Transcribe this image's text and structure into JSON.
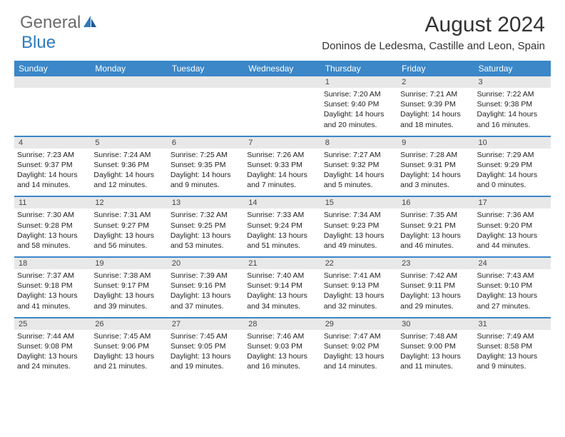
{
  "logo": {
    "text1": "General",
    "text2": "Blue"
  },
  "title": "August 2024",
  "location": "Doninos de Ledesma, Castille and Leon, Spain",
  "colors": {
    "header_bg": "#3b87c8",
    "header_text": "#ffffff",
    "daynum_bg": "#e8e8e8",
    "row_border": "#3b87c8",
    "body_text": "#222222",
    "logo_gray": "#6a6a6a",
    "logo_blue": "#2f7abf"
  },
  "day_headers": [
    "Sunday",
    "Monday",
    "Tuesday",
    "Wednesday",
    "Thursday",
    "Friday",
    "Saturday"
  ],
  "weeks": [
    {
      "nums": [
        "",
        "",
        "",
        "",
        "1",
        "2",
        "3"
      ],
      "cells": [
        null,
        null,
        null,
        null,
        {
          "sr": "Sunrise: 7:20 AM",
          "ss": "Sunset: 9:40 PM",
          "dl1": "Daylight: 14 hours",
          "dl2": "and 20 minutes."
        },
        {
          "sr": "Sunrise: 7:21 AM",
          "ss": "Sunset: 9:39 PM",
          "dl1": "Daylight: 14 hours",
          "dl2": "and 18 minutes."
        },
        {
          "sr": "Sunrise: 7:22 AM",
          "ss": "Sunset: 9:38 PM",
          "dl1": "Daylight: 14 hours",
          "dl2": "and 16 minutes."
        }
      ]
    },
    {
      "nums": [
        "4",
        "5",
        "6",
        "7",
        "8",
        "9",
        "10"
      ],
      "cells": [
        {
          "sr": "Sunrise: 7:23 AM",
          "ss": "Sunset: 9:37 PM",
          "dl1": "Daylight: 14 hours",
          "dl2": "and 14 minutes."
        },
        {
          "sr": "Sunrise: 7:24 AM",
          "ss": "Sunset: 9:36 PM",
          "dl1": "Daylight: 14 hours",
          "dl2": "and 12 minutes."
        },
        {
          "sr": "Sunrise: 7:25 AM",
          "ss": "Sunset: 9:35 PM",
          "dl1": "Daylight: 14 hours",
          "dl2": "and 9 minutes."
        },
        {
          "sr": "Sunrise: 7:26 AM",
          "ss": "Sunset: 9:33 PM",
          "dl1": "Daylight: 14 hours",
          "dl2": "and 7 minutes."
        },
        {
          "sr": "Sunrise: 7:27 AM",
          "ss": "Sunset: 9:32 PM",
          "dl1": "Daylight: 14 hours",
          "dl2": "and 5 minutes."
        },
        {
          "sr": "Sunrise: 7:28 AM",
          "ss": "Sunset: 9:31 PM",
          "dl1": "Daylight: 14 hours",
          "dl2": "and 3 minutes."
        },
        {
          "sr": "Sunrise: 7:29 AM",
          "ss": "Sunset: 9:29 PM",
          "dl1": "Daylight: 14 hours",
          "dl2": "and 0 minutes."
        }
      ]
    },
    {
      "nums": [
        "11",
        "12",
        "13",
        "14",
        "15",
        "16",
        "17"
      ],
      "cells": [
        {
          "sr": "Sunrise: 7:30 AM",
          "ss": "Sunset: 9:28 PM",
          "dl1": "Daylight: 13 hours",
          "dl2": "and 58 minutes."
        },
        {
          "sr": "Sunrise: 7:31 AM",
          "ss": "Sunset: 9:27 PM",
          "dl1": "Daylight: 13 hours",
          "dl2": "and 56 minutes."
        },
        {
          "sr": "Sunrise: 7:32 AM",
          "ss": "Sunset: 9:25 PM",
          "dl1": "Daylight: 13 hours",
          "dl2": "and 53 minutes."
        },
        {
          "sr": "Sunrise: 7:33 AM",
          "ss": "Sunset: 9:24 PM",
          "dl1": "Daylight: 13 hours",
          "dl2": "and 51 minutes."
        },
        {
          "sr": "Sunrise: 7:34 AM",
          "ss": "Sunset: 9:23 PM",
          "dl1": "Daylight: 13 hours",
          "dl2": "and 49 minutes."
        },
        {
          "sr": "Sunrise: 7:35 AM",
          "ss": "Sunset: 9:21 PM",
          "dl1": "Daylight: 13 hours",
          "dl2": "and 46 minutes."
        },
        {
          "sr": "Sunrise: 7:36 AM",
          "ss": "Sunset: 9:20 PM",
          "dl1": "Daylight: 13 hours",
          "dl2": "and 44 minutes."
        }
      ]
    },
    {
      "nums": [
        "18",
        "19",
        "20",
        "21",
        "22",
        "23",
        "24"
      ],
      "cells": [
        {
          "sr": "Sunrise: 7:37 AM",
          "ss": "Sunset: 9:18 PM",
          "dl1": "Daylight: 13 hours",
          "dl2": "and 41 minutes."
        },
        {
          "sr": "Sunrise: 7:38 AM",
          "ss": "Sunset: 9:17 PM",
          "dl1": "Daylight: 13 hours",
          "dl2": "and 39 minutes."
        },
        {
          "sr": "Sunrise: 7:39 AM",
          "ss": "Sunset: 9:16 PM",
          "dl1": "Daylight: 13 hours",
          "dl2": "and 37 minutes."
        },
        {
          "sr": "Sunrise: 7:40 AM",
          "ss": "Sunset: 9:14 PM",
          "dl1": "Daylight: 13 hours",
          "dl2": "and 34 minutes."
        },
        {
          "sr": "Sunrise: 7:41 AM",
          "ss": "Sunset: 9:13 PM",
          "dl1": "Daylight: 13 hours",
          "dl2": "and 32 minutes."
        },
        {
          "sr": "Sunrise: 7:42 AM",
          "ss": "Sunset: 9:11 PM",
          "dl1": "Daylight: 13 hours",
          "dl2": "and 29 minutes."
        },
        {
          "sr": "Sunrise: 7:43 AM",
          "ss": "Sunset: 9:10 PM",
          "dl1": "Daylight: 13 hours",
          "dl2": "and 27 minutes."
        }
      ]
    },
    {
      "nums": [
        "25",
        "26",
        "27",
        "28",
        "29",
        "30",
        "31"
      ],
      "cells": [
        {
          "sr": "Sunrise: 7:44 AM",
          "ss": "Sunset: 9:08 PM",
          "dl1": "Daylight: 13 hours",
          "dl2": "and 24 minutes."
        },
        {
          "sr": "Sunrise: 7:45 AM",
          "ss": "Sunset: 9:06 PM",
          "dl1": "Daylight: 13 hours",
          "dl2": "and 21 minutes."
        },
        {
          "sr": "Sunrise: 7:45 AM",
          "ss": "Sunset: 9:05 PM",
          "dl1": "Daylight: 13 hours",
          "dl2": "and 19 minutes."
        },
        {
          "sr": "Sunrise: 7:46 AM",
          "ss": "Sunset: 9:03 PM",
          "dl1": "Daylight: 13 hours",
          "dl2": "and 16 minutes."
        },
        {
          "sr": "Sunrise: 7:47 AM",
          "ss": "Sunset: 9:02 PM",
          "dl1": "Daylight: 13 hours",
          "dl2": "and 14 minutes."
        },
        {
          "sr": "Sunrise: 7:48 AM",
          "ss": "Sunset: 9:00 PM",
          "dl1": "Daylight: 13 hours",
          "dl2": "and 11 minutes."
        },
        {
          "sr": "Sunrise: 7:49 AM",
          "ss": "Sunset: 8:58 PM",
          "dl1": "Daylight: 13 hours",
          "dl2": "and 9 minutes."
        }
      ]
    }
  ]
}
